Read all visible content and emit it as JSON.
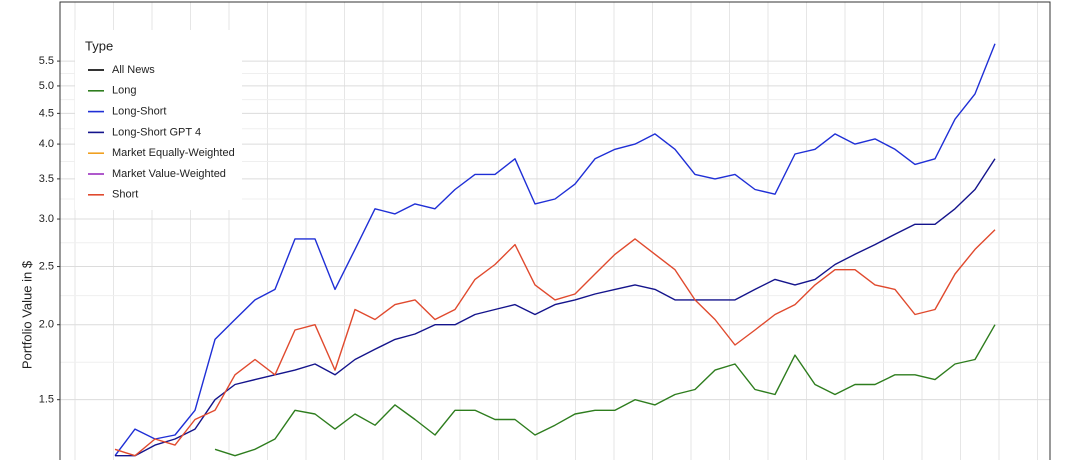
{
  "chart_data": {
    "type": "line",
    "y_label": "Portfolio Value in $",
    "log_scale": true,
    "grid": true,
    "ylim": [
      1.19,
      6.9
    ],
    "yticks": [
      1.5,
      {
        "value": 2,
        "label": "2.0"
      },
      2.5,
      {
        "value": 3,
        "label": "3.0"
      },
      3.5,
      {
        "value": 4,
        "label": "4.0"
      },
      4.5,
      {
        "value": 5,
        "label": "5.0"
      },
      5.5
    ],
    "legend": {
      "title": "Type",
      "position": "top-left"
    },
    "series": [
      {
        "name": "All News",
        "color": "#000000"
      },
      {
        "name": "Long",
        "color": "#2e7d1e",
        "values": [
          null,
          null,
          null,
          null,
          null,
          1.24,
          1.21,
          1.24,
          1.29,
          1.44,
          1.42,
          1.34,
          1.42,
          1.36,
          1.47,
          1.39,
          1.31,
          1.44,
          1.44,
          1.39,
          1.39,
          1.31,
          1.36,
          1.42,
          1.44,
          1.44,
          1.5,
          1.47,
          1.53,
          1.56,
          1.68,
          1.72,
          1.56,
          1.53,
          1.78,
          1.59,
          1.53,
          1.59,
          1.59,
          1.65,
          1.65,
          1.62,
          1.72,
          1.75,
          2.0
        ]
      },
      {
        "name": "Long-Short",
        "color": "#1f2fd6",
        "values": [
          1.21,
          1.34,
          1.29,
          1.31,
          1.44,
          1.89,
          2.04,
          2.2,
          2.29,
          2.78,
          2.78,
          2.29,
          2.67,
          3.12,
          3.06,
          3.18,
          3.12,
          3.36,
          3.56,
          3.56,
          3.78,
          3.18,
          3.24,
          3.43,
          3.78,
          3.92,
          4.0,
          4.16,
          3.92,
          3.56,
          3.5,
          3.56,
          3.36,
          3.3,
          3.85,
          3.92,
          4.16,
          4.0,
          4.08,
          3.92,
          3.7,
          3.78,
          4.4,
          4.85,
          5.88
        ]
      },
      {
        "name": "Long-Short GPT 4",
        "color": "#14148c",
        "values": [
          1.21,
          1.21,
          1.26,
          1.29,
          1.34,
          1.5,
          1.59,
          1.62,
          1.65,
          1.68,
          1.72,
          1.65,
          1.75,
          1.82,
          1.89,
          1.93,
          2.0,
          2.0,
          2.08,
          2.12,
          2.16,
          2.08,
          2.16,
          2.2,
          2.25,
          2.29,
          2.33,
          2.29,
          2.2,
          2.2,
          2.2,
          2.2,
          2.29,
          2.38,
          2.33,
          2.38,
          2.52,
          2.62,
          2.72,
          2.83,
          2.94,
          2.94,
          3.12,
          3.36,
          3.78
        ]
      },
      {
        "name": "Market Equally-Weighted",
        "color": "#f0a020"
      },
      {
        "name": "Market Value-Weighted",
        "color": "#9b30c0"
      },
      {
        "name": "Short",
        "color": "#e04a2e",
        "values": [
          1.24,
          1.21,
          1.29,
          1.26,
          1.39,
          1.44,
          1.65,
          1.75,
          1.65,
          1.96,
          2.0,
          1.68,
          2.12,
          2.04,
          2.16,
          2.2,
          2.04,
          2.12,
          2.38,
          2.52,
          2.72,
          2.33,
          2.2,
          2.25,
          2.43,
          2.62,
          2.78,
          2.62,
          2.47,
          2.2,
          2.04,
          1.85,
          1.96,
          2.08,
          2.16,
          2.33,
          2.47,
          2.47,
          2.33,
          2.29,
          2.08,
          2.12,
          2.43,
          2.67,
          2.88
        ]
      }
    ]
  }
}
